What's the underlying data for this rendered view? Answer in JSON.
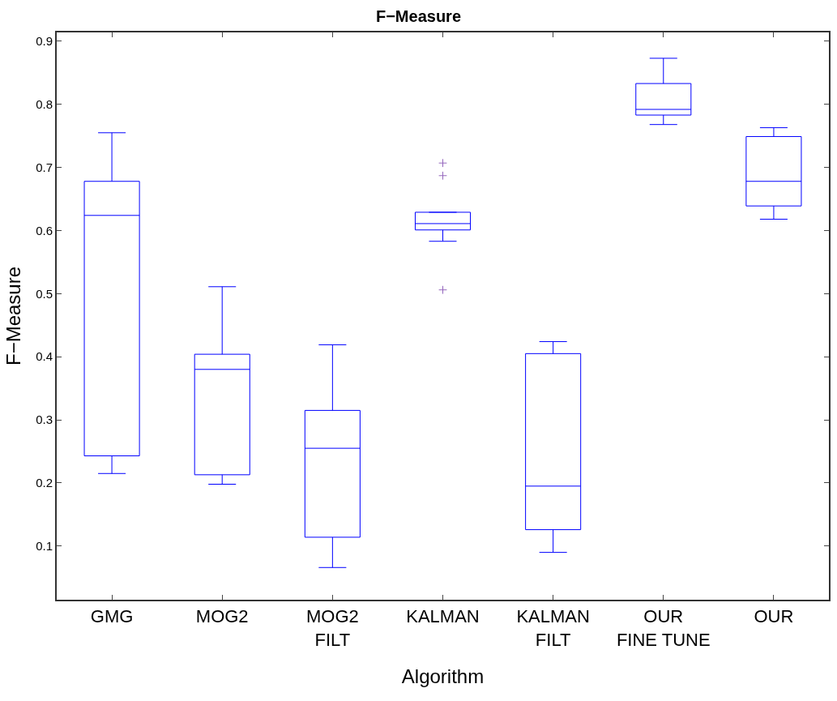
{
  "chart_data": {
    "type": "box",
    "title": "F−Measure",
    "xlabel": "Algorithm",
    "ylabel": "F−Measure",
    "categories": [
      "GMG",
      "MOG2",
      "MOG2 FILT",
      "KALMAN",
      "KALMAN FILT",
      "OUR FINE TUNE",
      "OUR"
    ],
    "series": [
      {
        "color": "#0000ff",
        "boxes": [
          {
            "low": 0.215,
            "q1": 0.243,
            "median": 0.624,
            "q3": 0.678,
            "high": 0.755
          },
          {
            "low": 0.198,
            "q1": 0.213,
            "median": 0.38,
            "q3": 0.404,
            "high": 0.511
          },
          {
            "low": 0.066,
            "q1": 0.114,
            "median": 0.255,
            "q3": 0.315,
            "high": 0.419
          },
          {
            "low": 0.583,
            "q1": 0.601,
            "median": 0.611,
            "q3": 0.629,
            "high": 0.629,
            "outliers": [
              0.707,
              0.687,
              0.506
            ]
          },
          {
            "low": 0.09,
            "q1": 0.126,
            "median": 0.195,
            "q3": 0.405,
            "high": 0.424
          },
          {
            "low": 0.768,
            "q1": 0.783,
            "median": 0.792,
            "q3": 0.833,
            "high": 0.873
          },
          {
            "low": 0.618,
            "q1": 0.639,
            "median": 0.678,
            "q3": 0.749,
            "high": 0.763
          }
        ]
      }
    ],
    "ylim": [
      0.015,
      0.914
    ],
    "yticks": [
      0.1,
      0.2,
      0.3,
      0.4,
      0.5,
      0.6,
      0.7,
      0.8,
      0.9
    ],
    "grid": false
  }
}
